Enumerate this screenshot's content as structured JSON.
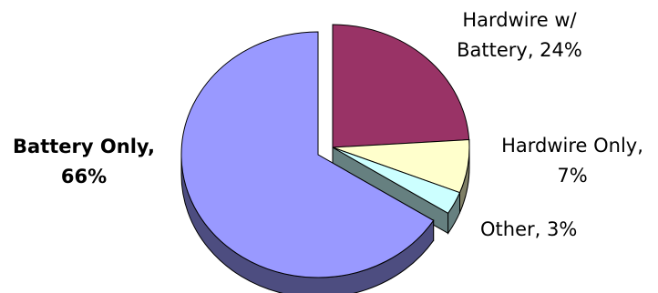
{
  "chart_data": {
    "type": "pie",
    "style": "3d-exploded",
    "title": "",
    "slices": [
      {
        "label": "Hardwire w/ Battery",
        "value": 24,
        "display": [
          "Hardwire w/",
          "Battery, 24%"
        ],
        "color": "#993366",
        "side": "#4d1933",
        "bold": false
      },
      {
        "label": "Hardwire Only",
        "value": 7,
        "display": [
          "Hardwire Only,",
          "7%"
        ],
        "color": "#ffffcc",
        "side": "#7f7f66",
        "bold": false
      },
      {
        "label": "Other",
        "value": 3,
        "display": [
          "Other, 3%"
        ],
        "color": "#ccffff",
        "side": "#668080",
        "bold": false
      },
      {
        "label": "Battery Only",
        "value": 66,
        "display": [
          "Battery Only,",
          "66%"
        ],
        "color": "#9999ff",
        "side": "#4d4d80",
        "bold": true
      }
    ]
  }
}
